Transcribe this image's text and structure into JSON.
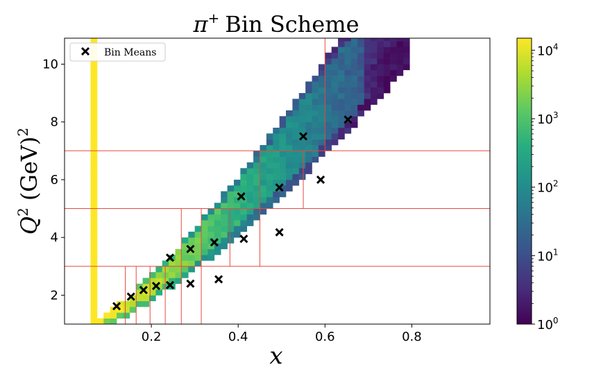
{
  "chart_data": {
    "type": "heatmap",
    "title": "π⁺ Bin Scheme",
    "title_parts": {
      "symbol": "π",
      "superscript": "+",
      "rest": "Bin Scheme"
    },
    "xlabel": "x",
    "ylabel_parts": {
      "base": "Q",
      "superscript": "2",
      "rest": "(GeV)",
      "rest_superscript": "2"
    },
    "xlim": [
      0.0,
      0.98
    ],
    "ylim": [
      1.0,
      10.9
    ],
    "xticks": [
      0.2,
      0.4,
      0.6,
      0.8
    ],
    "xtick_labels": [
      "0.2",
      "0.4",
      "0.6",
      "0.8"
    ],
    "yticks": [
      2,
      4,
      6,
      8,
      10
    ],
    "ytick_labels": [
      "2",
      "4",
      "6",
      "8",
      "10"
    ],
    "legend": {
      "label": "Bin Means",
      "marker": "x",
      "placement": "top-left"
    },
    "colorbar": {
      "scale": "log",
      "colormap": "viridis",
      "range": [
        1,
        15000
      ],
      "tick_values": [
        1,
        10,
        100,
        1000,
        10000
      ],
      "tick_labels": [
        {
          "base": "10",
          "exp": "0"
        },
        {
          "base": "10",
          "exp": "1"
        },
        {
          "base": "10",
          "exp": "2"
        },
        {
          "base": "10",
          "exp": "3"
        },
        {
          "base": "10",
          "exp": "4"
        }
      ]
    },
    "hist_bin_size": {
      "dx": 0.015,
      "dq2": 0.2
    },
    "bin_means": [
      {
        "x": 0.12,
        "q2": 1.62
      },
      {
        "x": 0.153,
        "q2": 1.95
      },
      {
        "x": 0.182,
        "q2": 2.18
      },
      {
        "x": 0.211,
        "q2": 2.32
      },
      {
        "x": 0.243,
        "q2": 2.35
      },
      {
        "x": 0.29,
        "q2": 2.4
      },
      {
        "x": 0.355,
        "q2": 2.55
      },
      {
        "x": 0.243,
        "q2": 3.3
      },
      {
        "x": 0.29,
        "q2": 3.6
      },
      {
        "x": 0.345,
        "q2": 3.83
      },
      {
        "x": 0.413,
        "q2": 3.95
      },
      {
        "x": 0.495,
        "q2": 4.18
      },
      {
        "x": 0.407,
        "q2": 5.42
      },
      {
        "x": 0.495,
        "q2": 5.73
      },
      {
        "x": 0.59,
        "q2": 6.0
      },
      {
        "x": 0.55,
        "q2": 7.5
      },
      {
        "x": 0.653,
        "q2": 8.08
      }
    ],
    "bin_boundaries": {
      "q2_lines": [
        3.0,
        5.0,
        7.0
      ],
      "x_segments": [
        {
          "x": 0.14,
          "q2": [
            1.0,
            3.0
          ]
        },
        {
          "x": 0.165,
          "q2": [
            1.0,
            3.0
          ]
        },
        {
          "x": 0.197,
          "q2": [
            1.0,
            3.0
          ]
        },
        {
          "x": 0.232,
          "q2": [
            1.0,
            3.0
          ]
        },
        {
          "x": 0.269,
          "q2": [
            1.0,
            3.0
          ]
        },
        {
          "x": 0.315,
          "q2": [
            1.0,
            3.0
          ]
        },
        {
          "x": 0.269,
          "q2": [
            3.0,
            5.0
          ]
        },
        {
          "x": 0.315,
          "q2": [
            3.0,
            5.0
          ]
        },
        {
          "x": 0.381,
          "q2": [
            3.0,
            5.0
          ]
        },
        {
          "x": 0.45,
          "q2": [
            3.0,
            5.0
          ]
        },
        {
          "x": 0.45,
          "q2": [
            5.0,
            7.0
          ]
        },
        {
          "x": 0.55,
          "q2": [
            5.0,
            7.0
          ]
        },
        {
          "x": 0.6,
          "q2": [
            7.0,
            10.9
          ]
        }
      ]
    },
    "colors": {
      "boundary": "#e8483f",
      "marker": "#000000",
      "axis": "#000000"
    }
  }
}
